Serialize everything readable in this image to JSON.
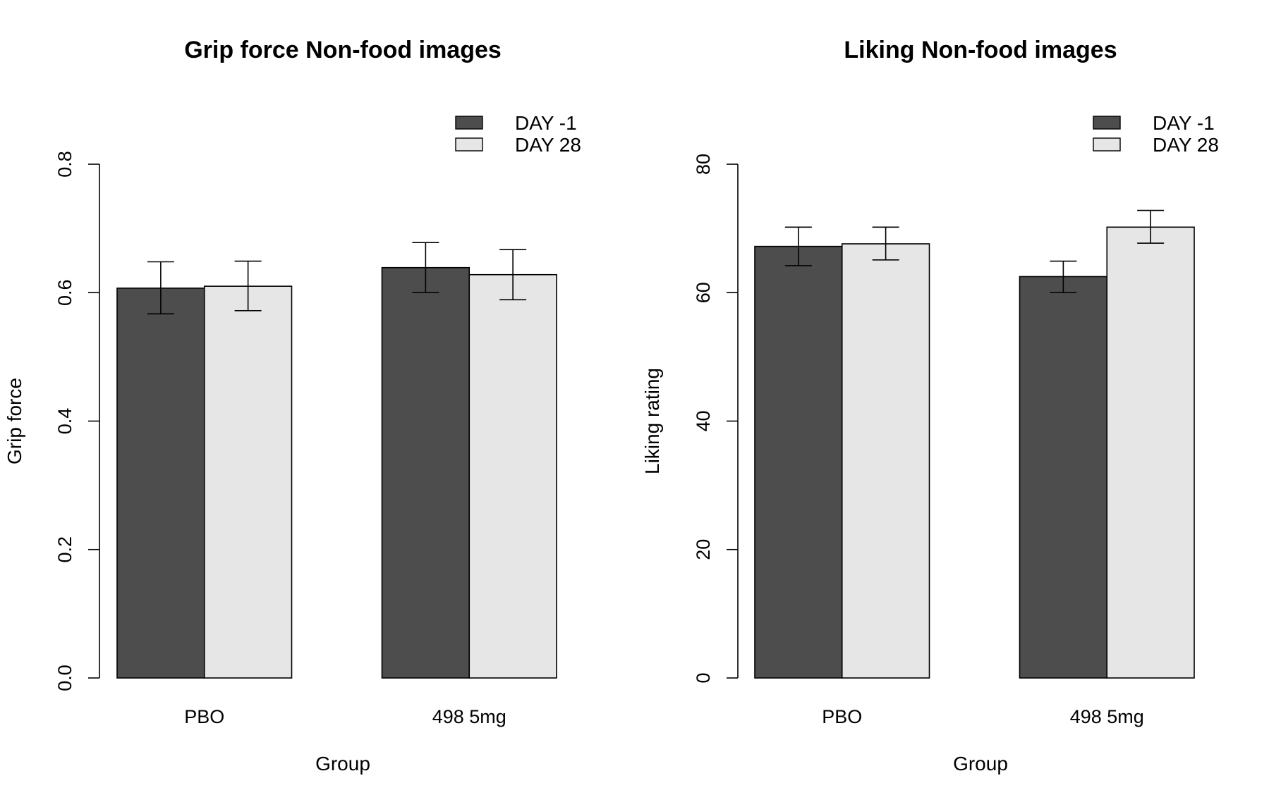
{
  "chart_data": [
    {
      "type": "bar",
      "title": "Grip force Non-food images",
      "xlabel": "Group",
      "ylabel": "Grip force",
      "categories": [
        "PBO",
        "498 5mg"
      ],
      "ylim": [
        0,
        0.8
      ],
      "yticks": [
        0,
        0.2,
        0.4,
        0.6,
        0.8
      ],
      "ytick_labels": [
        "0.0",
        "0.2",
        "0.4",
        "0.6",
        "0.8"
      ],
      "legend": {
        "position": "top-right",
        "entries": [
          "DAY -1",
          "DAY 28"
        ]
      },
      "series": [
        {
          "name": "DAY -1",
          "color": "#4d4d4d",
          "values": [
            0.607,
            0.639
          ],
          "err_low": [
            0.567,
            0.6
          ],
          "err_high": [
            0.648,
            0.678
          ]
        },
        {
          "name": "DAY 28",
          "color": "#e6e6e6",
          "values": [
            0.61,
            0.628
          ],
          "err_low": [
            0.572,
            0.589
          ],
          "err_high": [
            0.649,
            0.667
          ]
        }
      ]
    },
    {
      "type": "bar",
      "title": "Liking Non-food images",
      "xlabel": "Group",
      "ylabel": "Liking rating",
      "categories": [
        "PBO",
        "498 5mg"
      ],
      "ylim": [
        0,
        80
      ],
      "yticks": [
        0,
        20,
        40,
        60,
        80
      ],
      "ytick_labels": [
        "0",
        "20",
        "40",
        "60",
        "80"
      ],
      "legend": {
        "position": "top-right",
        "entries": [
          "DAY -1",
          "DAY 28"
        ]
      },
      "series": [
        {
          "name": "DAY -1",
          "color": "#4d4d4d",
          "values": [
            67.2,
            62.5
          ],
          "err_low": [
            64.2,
            60.0
          ],
          "err_high": [
            70.2,
            64.9
          ]
        },
        {
          "name": "DAY 28",
          "color": "#e6e6e6",
          "values": [
            67.6,
            70.2
          ],
          "err_low": [
            65.1,
            67.7
          ],
          "err_high": [
            70.2,
            72.8
          ]
        }
      ]
    }
  ]
}
